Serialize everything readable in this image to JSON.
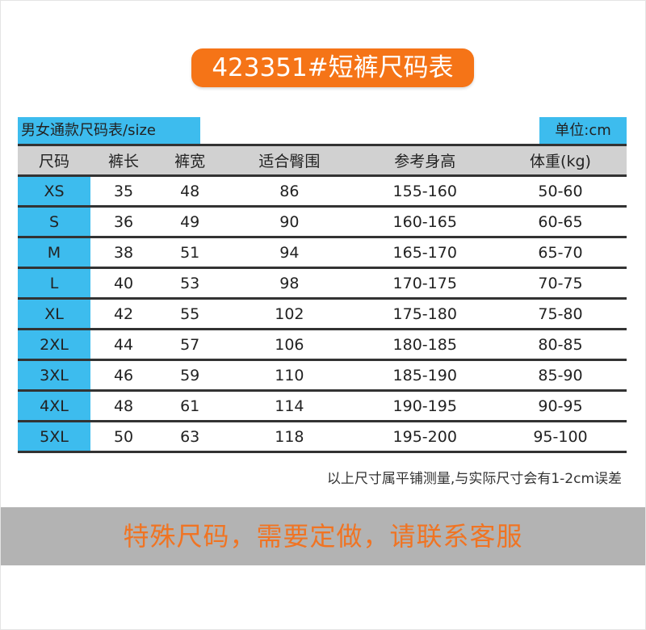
{
  "title": "423351#短裤尺码表",
  "table_label": "男女通款尺码表/size",
  "unit_label": "单位:cm",
  "columns": [
    "尺码",
    "裤长",
    "裤宽",
    "适合臀围",
    "参考身高",
    "体重(kg)"
  ],
  "rows": [
    [
      "XS",
      "35",
      "48",
      "86",
      "155-160",
      "50-60"
    ],
    [
      "S",
      "36",
      "49",
      "90",
      "160-165",
      "60-65"
    ],
    [
      "M",
      "38",
      "51",
      "94",
      "165-170",
      "65-70"
    ],
    [
      "L",
      "40",
      "53",
      "98",
      "170-175",
      "70-75"
    ],
    [
      "XL",
      "42",
      "55",
      "102",
      "175-180",
      "75-80"
    ],
    [
      "2XL",
      "44",
      "57",
      "106",
      "180-185",
      "80-85"
    ],
    [
      "3XL",
      "46",
      "59",
      "110",
      "185-190",
      "85-90"
    ],
    [
      "4XL",
      "48",
      "61",
      "114",
      "190-195",
      "90-95"
    ],
    [
      "5XL",
      "50",
      "63",
      "118",
      "195-200",
      "95-100"
    ]
  ],
  "note": "以上尺寸属平铺测量,与实际尺寸会有1-2cm误差",
  "banner": "特殊尺码，需要定做，请联系客服",
  "colors": {
    "accent_orange": "#f57417",
    "header_blue": "#3dbcee",
    "header_gray": "#d1d1d1",
    "banner_gray": "#b3b3b3"
  }
}
